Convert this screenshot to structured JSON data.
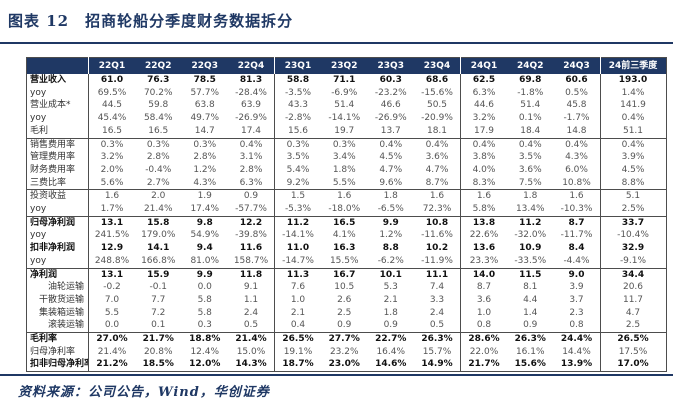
{
  "header": {
    "figure_title": "图表 12　招商轮船分季度财务数据拆分"
  },
  "footer": {
    "source_note": "资料来源：公司公告，Wind，华创证券"
  },
  "colors": {
    "navy": "#1f3864",
    "header_bg": "#1f3864",
    "header_text": "#ffffff",
    "body_text": "#555555",
    "border": "#4d4d4d"
  },
  "table": {
    "columns": [
      "",
      "22Q1",
      "22Q2",
      "22Q3",
      "22Q4",
      "23Q1",
      "23Q2",
      "23Q3",
      "23Q4",
      "24Q1",
      "24Q2",
      "24Q3",
      "24前三季度"
    ],
    "column_group_separators_after": [
      0,
      4,
      8,
      11
    ],
    "group_breaks_after_rows": [
      4,
      8,
      10,
      14,
      19
    ],
    "rows": [
      {
        "label": "营业收入",
        "bold": true,
        "indent": false,
        "values": [
          "61.0",
          "76.3",
          "78.5",
          "81.3",
          "58.8",
          "71.1",
          "60.3",
          "68.6",
          "62.5",
          "69.8",
          "60.6",
          "193.0"
        ]
      },
      {
        "label": "yoy",
        "bold": false,
        "indent": false,
        "values": [
          "69.5%",
          "70.2%",
          "57.7%",
          "-28.4%",
          "-3.5%",
          "-6.9%",
          "-23.2%",
          "-15.6%",
          "6.3%",
          "-1.8%",
          "0.5%",
          "1.4%"
        ]
      },
      {
        "label": "营业成本*",
        "bold": false,
        "indent": false,
        "values": [
          "44.5",
          "59.8",
          "63.8",
          "63.9",
          "43.3",
          "51.4",
          "46.6",
          "50.5",
          "44.6",
          "51.4",
          "45.8",
          "141.9"
        ]
      },
      {
        "label": "yoy",
        "bold": false,
        "indent": false,
        "values": [
          "45.4%",
          "58.4%",
          "49.7%",
          "-26.9%",
          "-2.8%",
          "-14.1%",
          "-26.9%",
          "-20.9%",
          "3.2%",
          "0.1%",
          "-1.7%",
          "0.4%"
        ]
      },
      {
        "label": "毛利",
        "bold": false,
        "indent": false,
        "values": [
          "16.5",
          "16.5",
          "14.7",
          "17.4",
          "15.6",
          "19.7",
          "13.7",
          "18.1",
          "17.9",
          "18.4",
          "14.8",
          "51.1"
        ]
      },
      {
        "label": "销售费用率",
        "bold": false,
        "indent": false,
        "values": [
          "0.3%",
          "0.3%",
          "0.3%",
          "0.4%",
          "0.3%",
          "0.3%",
          "0.4%",
          "0.4%",
          "0.4%",
          "0.4%",
          "0.4%",
          "0.4%"
        ]
      },
      {
        "label": "管理费用率",
        "bold": false,
        "indent": false,
        "values": [
          "3.2%",
          "2.8%",
          "2.8%",
          "3.1%",
          "3.5%",
          "3.4%",
          "4.5%",
          "3.6%",
          "3.8%",
          "3.5%",
          "4.3%",
          "3.9%"
        ]
      },
      {
        "label": "财务费用率",
        "bold": false,
        "indent": false,
        "values": [
          "2.0%",
          "-0.4%",
          "1.2%",
          "2.8%",
          "5.4%",
          "1.8%",
          "4.7%",
          "4.7%",
          "4.0%",
          "3.6%",
          "6.0%",
          "4.5%"
        ]
      },
      {
        "label": "三费比率",
        "bold": false,
        "indent": false,
        "values": [
          "5.6%",
          "2.7%",
          "4.3%",
          "6.3%",
          "9.2%",
          "5.5%",
          "9.6%",
          "8.7%",
          "8.3%",
          "7.5%",
          "10.8%",
          "8.8%"
        ]
      },
      {
        "label": "投资收益",
        "bold": false,
        "indent": false,
        "values": [
          "1.6",
          "2.0",
          "1.9",
          "0.9",
          "1.5",
          "1.6",
          "1.8",
          "1.6",
          "1.6",
          "1.8",
          "1.6",
          "5.1"
        ]
      },
      {
        "label": "yoy",
        "bold": false,
        "indent": false,
        "values": [
          "1.7%",
          "21.4%",
          "17.4%",
          "-57.7%",
          "-5.3%",
          "-18.0%",
          "-6.5%",
          "72.3%",
          "5.8%",
          "13.4%",
          "-10.3%",
          "2.5%"
        ]
      },
      {
        "label": "归母净利润",
        "bold": true,
        "indent": false,
        "values": [
          "13.1",
          "15.8",
          "9.8",
          "12.2",
          "11.2",
          "16.5",
          "9.9",
          "10.8",
          "13.8",
          "11.2",
          "8.7",
          "33.7"
        ]
      },
      {
        "label": "yoy",
        "bold": false,
        "indent": false,
        "values": [
          "241.5%",
          "179.0%",
          "54.9%",
          "-39.8%",
          "-14.1%",
          "4.1%",
          "1.2%",
          "-11.6%",
          "22.6%",
          "-32.0%",
          "-11.7%",
          "-10.4%"
        ]
      },
      {
        "label": "扣非净利润",
        "bold": true,
        "indent": false,
        "values": [
          "12.9",
          "14.1",
          "9.4",
          "11.6",
          "11.0",
          "16.3",
          "8.8",
          "10.2",
          "13.6",
          "10.9",
          "8.4",
          "32.9"
        ]
      },
      {
        "label": "yoy",
        "bold": false,
        "indent": false,
        "values": [
          "248.8%",
          "166.8%",
          "81.0%",
          "158.7%",
          "-14.7%",
          "15.5%",
          "-6.2%",
          "-11.9%",
          "23.3%",
          "-33.5%",
          "-4.4%",
          "-9.1%"
        ]
      },
      {
        "label": "净利润",
        "bold": true,
        "indent": false,
        "values": [
          "13.1",
          "15.9",
          "9.9",
          "11.8",
          "11.3",
          "16.7",
          "10.1",
          "11.1",
          "14.0",
          "11.5",
          "9.0",
          "34.4"
        ]
      },
      {
        "label": "油轮运输",
        "bold": false,
        "indent": true,
        "values": [
          "-0.2",
          "-0.1",
          "0.0",
          "9.1",
          "7.6",
          "10.5",
          "5.3",
          "7.4",
          "8.7",
          "8.1",
          "3.9",
          "20.6"
        ]
      },
      {
        "label": "干散货运输",
        "bold": false,
        "indent": true,
        "values": [
          "7.0",
          "7.7",
          "5.8",
          "1.1",
          "1.0",
          "2.6",
          "2.1",
          "3.3",
          "3.6",
          "4.4",
          "3.7",
          "11.7"
        ]
      },
      {
        "label": "集装箱运输",
        "bold": false,
        "indent": true,
        "values": [
          "5.5",
          "7.2",
          "5.8",
          "2.4",
          "2.1",
          "2.5",
          "1.8",
          "2.4",
          "1.0",
          "1.4",
          "2.3",
          "4.7"
        ]
      },
      {
        "label": "滚装运输",
        "bold": false,
        "indent": true,
        "values": [
          "0.0",
          "0.1",
          "0.3",
          "0.5",
          "0.4",
          "0.9",
          "0.9",
          "0.5",
          "0.8",
          "0.9",
          "0.8",
          "2.5"
        ]
      },
      {
        "label": "毛利率",
        "bold": true,
        "indent": false,
        "values": [
          "27.0%",
          "21.7%",
          "18.8%",
          "21.4%",
          "26.5%",
          "27.7%",
          "22.7%",
          "26.3%",
          "28.6%",
          "26.3%",
          "24.4%",
          "26.5%"
        ]
      },
      {
        "label": "归母净利率",
        "bold": false,
        "indent": false,
        "values": [
          "21.4%",
          "20.8%",
          "12.4%",
          "15.0%",
          "19.1%",
          "23.2%",
          "16.4%",
          "15.7%",
          "22.0%",
          "16.1%",
          "14.4%",
          "17.5%"
        ]
      },
      {
        "label": "扣非归母净利率",
        "bold": true,
        "indent": false,
        "values": [
          "21.2%",
          "18.5%",
          "12.0%",
          "14.3%",
          "18.7%",
          "23.0%",
          "14.6%",
          "14.9%",
          "21.7%",
          "15.6%",
          "13.9%",
          "17.0%"
        ]
      }
    ]
  }
}
